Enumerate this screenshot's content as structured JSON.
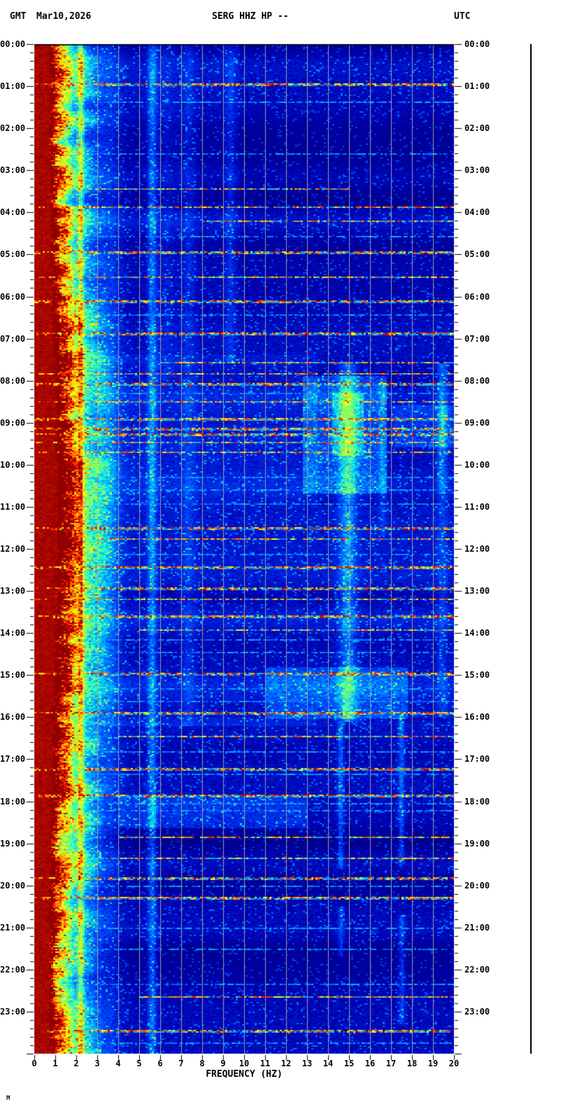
{
  "header": {
    "timezone_left": "GMT",
    "date": "Mar10,2026",
    "station": "SERG HHZ HP --",
    "timezone_right": "UTC"
  },
  "axes": {
    "left_time_labels": [
      "00:00",
      "01:00",
      "02:00",
      "03:00",
      "04:00",
      "05:00",
      "06:00",
      "07:00",
      "08:00",
      "09:00",
      "10:00",
      "11:00",
      "12:00",
      "13:00",
      "14:00",
      "15:00",
      "16:00",
      "17:00",
      "18:00",
      "19:00",
      "20:00",
      "21:00",
      "22:00",
      "23:00"
    ],
    "right_time_labels": [
      "00:00",
      "01:00",
      "02:00",
      "03:00",
      "04:00",
      "05:00",
      "06:00",
      "07:00",
      "08:00",
      "09:00",
      "10:00",
      "11:00",
      "12:00",
      "13:00",
      "14:00",
      "15:00",
      "16:00",
      "17:00",
      "18:00",
      "19:00",
      "20:00",
      "21:00",
      "22:00",
      "23:00"
    ],
    "freq_tick_labels": [
      "0",
      "1",
      "2",
      "3",
      "4",
      "5",
      "6",
      "7",
      "8",
      "9",
      "10",
      "11",
      "12",
      "13",
      "14",
      "15",
      "16",
      "17",
      "18",
      "19",
      "20"
    ],
    "x_axis_title": "FREQUENCY (HZ)"
  },
  "corner_mark": "M",
  "chart_data": {
    "type": "heatmap",
    "title": "SERG HHZ HP --",
    "date": "Mar10,2026",
    "xlabel": "FREQUENCY (HZ)",
    "x_range_hz": [
      0,
      20
    ],
    "y_range_hours": [
      0,
      24
    ],
    "y_major_tick_minutes": 60,
    "y_minor_tick_minutes": 12,
    "grid_hz": [
      1,
      2,
      3,
      4,
      5,
      6,
      7,
      8,
      9,
      10,
      11,
      12,
      13,
      14,
      15,
      16,
      17,
      18,
      19
    ],
    "grid_color": "#9d9d9d",
    "axis_color": "#000000",
    "colormap_stops": [
      [
        0.0,
        "#00006e"
      ],
      [
        0.15,
        "#0000aa"
      ],
      [
        0.25,
        "#001edc"
      ],
      [
        0.35,
        "#0050ff"
      ],
      [
        0.45,
        "#00b4ff"
      ],
      [
        0.55,
        "#28ffc8"
      ],
      [
        0.65,
        "#96ff50"
      ],
      [
        0.73,
        "#ffff00"
      ],
      [
        0.82,
        "#ff9600"
      ],
      [
        0.9,
        "#ff1e00"
      ],
      [
        1.0,
        "#910000"
      ]
    ],
    "low_band": {
      "saturated_color": "#8b0000",
      "saturated_edge_hz_base": 0.7,
      "saturated_edge_hz_midday_extra": 0.38,
      "midday_center_hour": 11.3,
      "midday_sigma_hours": 4.3,
      "fringe_width_hz": 0.16,
      "yellow_band_offset_hz": 0.5,
      "yellow_band_sigma_hz": 0.38,
      "yellow_band_amp": 0.55,
      "cyan_band_offset_hz": 1.45,
      "cyan_band_sigma_hz": 0.75,
      "cyan_band_amp": 0.32
    },
    "patches": [
      [
        7.9,
        10.7,
        12.8,
        16.8,
        0.16
      ],
      [
        8.3,
        9.8,
        14.2,
        15.7,
        0.12
      ],
      [
        14.8,
        16.05,
        11.0,
        17.8,
        0.14
      ],
      [
        17.85,
        18.65,
        4.0,
        13.0,
        0.12
      ],
      [
        7.4,
        16.2,
        3.0,
        13.5,
        0.05
      ],
      [
        16.2,
        24.0,
        3.2,
        20.0,
        -0.035
      ],
      [
        0.0,
        6.0,
        9.8,
        20.0,
        -0.02
      ],
      [
        11.0,
        16.0,
        13.5,
        20.0,
        0.05
      ],
      [
        8.6,
        9.6,
        17.0,
        20.0,
        0.12
      ]
    ],
    "columns": [
      [
        2.22,
        0.1,
        0.3,
        0,
        24
      ],
      [
        3.7,
        0.35,
        0.1,
        0,
        24
      ],
      [
        5.62,
        0.15,
        0.28,
        0,
        24
      ],
      [
        6.3,
        0.35,
        0.08,
        0,
        8
      ],
      [
        7.35,
        0.22,
        0.12,
        0,
        16.2
      ],
      [
        9.35,
        0.18,
        0.14,
        0,
        7.6
      ],
      [
        14.95,
        0.3,
        0.28,
        7.6,
        16.1
      ],
      [
        14.6,
        0.1,
        0.26,
        16.1,
        19.6
      ],
      [
        14.62,
        0.1,
        0.22,
        20.5,
        21.7
      ],
      [
        17.5,
        0.1,
        0.24,
        16.0,
        19.5
      ],
      [
        17.52,
        0.1,
        0.2,
        20.7,
        23.3
      ],
      [
        19.45,
        0.18,
        0.26,
        7.6,
        10.7
      ],
      [
        19.45,
        0.18,
        0.14,
        10.7,
        16.0
      ],
      [
        16.6,
        0.12,
        0.12,
        8.0,
        11.7
      ]
    ],
    "events": [
      [
        0.92,
        0.95,
        "h",
        0,
        20
      ],
      [
        1.35,
        0.3,
        "c",
        0,
        20
      ],
      [
        2.6,
        0.4,
        "c",
        0,
        20
      ],
      [
        3.42,
        0.45,
        "h",
        2,
        15
      ],
      [
        3.87,
        0.55,
        "h",
        0,
        20
      ],
      [
        4.18,
        0.5,
        "h",
        8,
        20
      ],
      [
        4.55,
        0.3,
        "c",
        0,
        20
      ],
      [
        4.93,
        0.95,
        "h",
        0,
        20
      ],
      [
        5.52,
        0.45,
        "h",
        0,
        20
      ],
      [
        6.1,
        0.9,
        "h",
        0,
        20
      ],
      [
        6.42,
        0.5,
        "c",
        0,
        20
      ],
      [
        6.85,
        0.9,
        "h",
        0,
        20
      ],
      [
        7.55,
        0.55,
        "h",
        6,
        20
      ],
      [
        7.83,
        0.5,
        "h",
        0,
        20
      ],
      [
        8.05,
        0.9,
        "h",
        0,
        20
      ],
      [
        8.3,
        0.5,
        "c",
        0,
        20
      ],
      [
        8.5,
        0.55,
        "h",
        0,
        20
      ],
      [
        8.9,
        0.8,
        "h",
        0,
        20
      ],
      [
        9.12,
        0.85,
        "h",
        0,
        20
      ],
      [
        9.25,
        0.85,
        "h",
        0,
        20
      ],
      [
        9.45,
        0.6,
        "h",
        0,
        20
      ],
      [
        9.7,
        0.55,
        "h",
        0,
        20
      ],
      [
        10.3,
        0.5,
        "c",
        0,
        20
      ],
      [
        10.6,
        0.4,
        "c",
        0,
        20
      ],
      [
        10.93,
        0.45,
        "c",
        0,
        20
      ],
      [
        11.47,
        0.9,
        "h",
        0,
        20
      ],
      [
        11.75,
        0.55,
        "h",
        3,
        20
      ],
      [
        12.12,
        0.4,
        "c",
        0,
        20
      ],
      [
        12.42,
        0.85,
        "h",
        0,
        20
      ],
      [
        12.9,
        0.85,
        "h",
        0,
        20
      ],
      [
        13.17,
        0.5,
        "h",
        0,
        20
      ],
      [
        13.57,
        0.85,
        "h",
        0,
        20
      ],
      [
        13.92,
        0.5,
        "h",
        5,
        20
      ],
      [
        14.15,
        0.4,
        "c",
        0,
        20
      ],
      [
        14.45,
        0.55,
        "c",
        0,
        20
      ],
      [
        14.95,
        0.9,
        "h",
        0,
        20
      ],
      [
        15.32,
        0.5,
        "c",
        0,
        20
      ],
      [
        15.62,
        0.45,
        "c",
        0,
        20
      ],
      [
        15.88,
        0.85,
        "h",
        0,
        20
      ],
      [
        16.45,
        0.5,
        "h",
        4,
        20
      ],
      [
        16.8,
        0.35,
        "c",
        0,
        20
      ],
      [
        17.22,
        0.85,
        "h",
        0,
        20
      ],
      [
        17.35,
        0.45,
        "c",
        0,
        20
      ],
      [
        17.85,
        0.85,
        "h",
        0,
        20
      ],
      [
        18.05,
        0.6,
        "c",
        0,
        20
      ],
      [
        18.2,
        0.5,
        "c",
        0,
        20
      ],
      [
        18.85,
        0.5,
        "h",
        4,
        20
      ],
      [
        19.35,
        0.5,
        "h",
        3,
        20
      ],
      [
        19.8,
        0.85,
        "h",
        0,
        20
      ],
      [
        20.0,
        0.4,
        "c",
        0,
        20
      ],
      [
        20.28,
        0.8,
        "h",
        0,
        20
      ],
      [
        21.0,
        0.4,
        "c",
        0,
        20
      ],
      [
        21.5,
        0.3,
        "c",
        0,
        20
      ],
      [
        22.35,
        0.35,
        "c",
        0,
        20
      ],
      [
        22.65,
        0.45,
        "h",
        5,
        20
      ],
      [
        23.42,
        0.85,
        "h",
        0,
        20
      ],
      [
        23.72,
        0.4,
        "c",
        0,
        20
      ]
    ]
  }
}
